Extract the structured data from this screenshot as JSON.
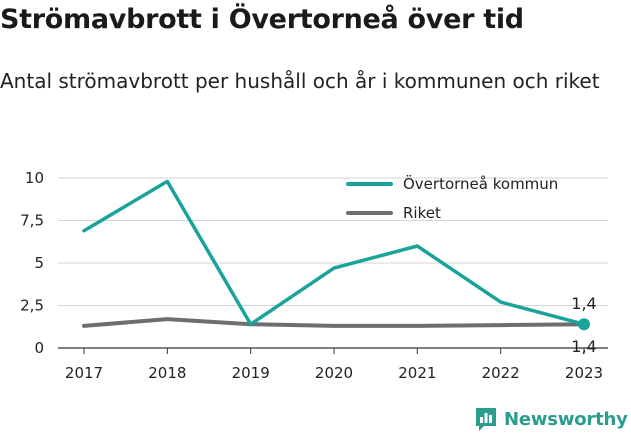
{
  "title": "Strömavbrott i Övertorneå över tid",
  "subtitle": "Antal strömavbrott per hushåll och år i kommunen och riket",
  "brand": {
    "name": "Newsworthy",
    "icon": "bar-chart-logo-icon",
    "color": "#2a9d8f"
  },
  "chart_data": {
    "type": "line",
    "title": "Strömavbrott i Övertorneå över tid",
    "subtitle": "Antal strömavbrott per hushåll och år i kommunen och riket",
    "x": [
      "2017",
      "2018",
      "2019",
      "2020",
      "2021",
      "2022",
      "2023"
    ],
    "ylim": [
      0,
      10
    ],
    "yticks": [
      0,
      2.5,
      5,
      7.5,
      10
    ],
    "ytick_labels": [
      "0",
      "2,5",
      "5",
      "7,5",
      "10"
    ],
    "grid": true,
    "legend_position": "top-right",
    "series": [
      {
        "name": "Övertorneå kommun",
        "color": "#1aa39a",
        "values": [
          6.9,
          9.8,
          1.4,
          4.7,
          6.0,
          2.7,
          1.4
        ]
      },
      {
        "name": "Riket",
        "color": "#6e6e72",
        "values": [
          1.3,
          1.7,
          1.4,
          1.3,
          1.3,
          1.35,
          1.4
        ]
      }
    ],
    "end_labels": {
      "upper": "1,4",
      "lower": "1,4"
    }
  }
}
